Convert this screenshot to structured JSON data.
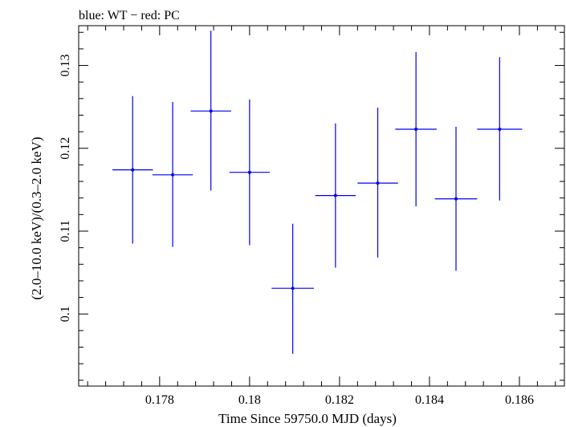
{
  "header": {
    "label": "blue: WT − red: PC"
  },
  "chart_data": {
    "type": "scatter",
    "title": "blue: WT − red: PC",
    "xlabel": "Time Since 59750.0 MJD (days)",
    "ylabel": "(2.0–10.0 keV)/(0.3–2.0 keV)",
    "xlim": [
      0.1762,
      0.187
    ],
    "ylim": [
      0.0913,
      0.1348
    ],
    "x_ticks": [
      0.178,
      0.18,
      0.182,
      0.184,
      0.186
    ],
    "x_tick_labels": [
      "0.178",
      "0.18",
      "0.182",
      "0.184",
      "0.186"
    ],
    "y_ticks": [
      0.1,
      0.11,
      0.12,
      0.13
    ],
    "y_tick_labels": [
      "0.1",
      "0.11",
      "0.12",
      "0.13"
    ],
    "grid": false,
    "series": [
      {
        "name": "WT",
        "color": "#0000ee",
        "points": [
          {
            "x": 0.1774,
            "xerr": 0.00045,
            "y": 0.1174,
            "yerr_low": 0.0089,
            "yerr_high": 0.0089
          },
          {
            "x": 0.17829,
            "xerr": 0.00045,
            "y": 0.1168,
            "yerr_low": 0.0087,
            "yerr_high": 0.0088
          },
          {
            "x": 0.17914,
            "xerr": 0.00045,
            "y": 0.1245,
            "yerr_low": 0.0096,
            "yerr_high": 0.0097
          },
          {
            "x": 0.18,
            "xerr": 0.00045,
            "y": 0.1171,
            "yerr_low": 0.0088,
            "yerr_high": 0.0088
          },
          {
            "x": 0.18096,
            "xerr": 0.00047,
            "y": 0.1031,
            "yerr_low": 0.0079,
            "yerr_high": 0.0078
          },
          {
            "x": 0.18191,
            "xerr": 0.00045,
            "y": 0.1143,
            "yerr_low": 0.0087,
            "yerr_high": 0.0087
          },
          {
            "x": 0.18285,
            "xerr": 0.00045,
            "y": 0.1158,
            "yerr_low": 0.009,
            "yerr_high": 0.0091
          },
          {
            "x": 0.1837,
            "xerr": 0.00046,
            "y": 0.1223,
            "yerr_low": 0.0093,
            "yerr_high": 0.0093
          },
          {
            "x": 0.18459,
            "xerr": 0.00047,
            "y": 0.1139,
            "yerr_low": 0.0087,
            "yerr_high": 0.0087
          },
          {
            "x": 0.18556,
            "xerr": 0.0005,
            "y": 0.1223,
            "yerr_low": 0.0086,
            "yerr_high": 0.0087
          }
        ]
      }
    ]
  }
}
